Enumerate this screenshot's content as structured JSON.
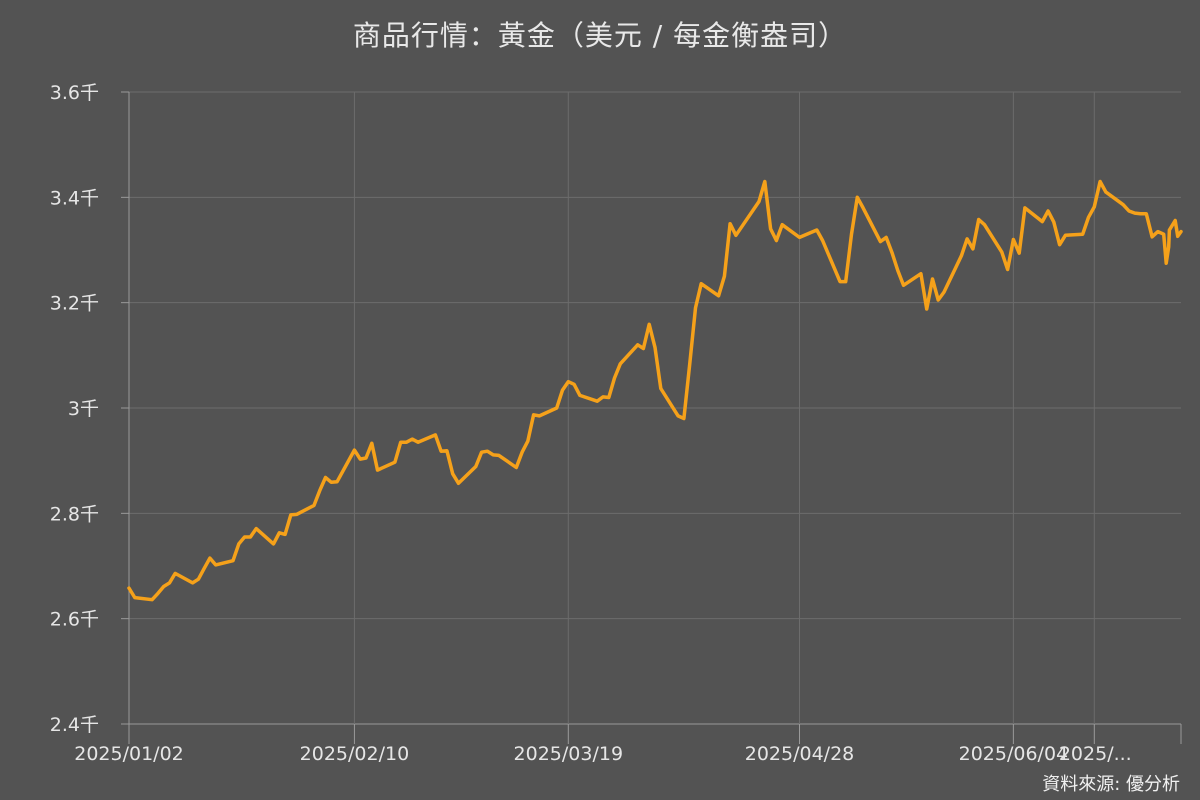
{
  "chart_data": {
    "type": "line",
    "title": "商品行情：黃金（美元 / 每金衡盎司）",
    "source": "資料來源: 優分析",
    "ylim": [
      2.4,
      3.6
    ],
    "yticks": [
      {
        "value": 2.4,
        "label": "2.4千"
      },
      {
        "value": 2.6,
        "label": "2.6千"
      },
      {
        "value": 2.8,
        "label": "2.8千"
      },
      {
        "value": 3.0,
        "label": "3千"
      },
      {
        "value": 3.2,
        "label": "3.2千"
      },
      {
        "value": 3.4,
        "label": "3.4千"
      },
      {
        "value": 3.6,
        "label": "3.6千"
      }
    ],
    "xlim": [
      "2025/01/02",
      "2025/07/03"
    ],
    "xticks": [
      {
        "value": "2025/01/02",
        "label": "2025/01/02"
      },
      {
        "value": "2025/02/10",
        "label": "2025/02/10"
      },
      {
        "value": "2025/03/19",
        "label": "2025/03/19"
      },
      {
        "value": "2025/04/28",
        "label": "2025/04/28"
      },
      {
        "value": "2025/06/04",
        "label": "2025/06/04"
      },
      {
        "value": "2025/06/18",
        "label": "2025/..."
      }
    ],
    "grid": true,
    "line_color": "#f5a11a",
    "series": [
      {
        "points": [
          [
            "2025/01/02",
            2.658
          ],
          [
            "2025/01/03",
            2.64
          ],
          [
            "2025/01/06",
            2.636
          ],
          [
            "2025/01/07",
            2.648
          ],
          [
            "2025/01/08",
            2.661
          ],
          [
            "2025/01/09",
            2.668
          ],
          [
            "2025/01/10",
            2.686
          ],
          [
            "2025/01/13",
            2.668
          ],
          [
            "2025/01/14",
            2.675
          ],
          [
            "2025/01/15",
            2.695
          ],
          [
            "2025/01/16",
            2.715
          ],
          [
            "2025/01/17",
            2.702
          ],
          [
            "2025/01/20",
            2.71
          ],
          [
            "2025/01/21",
            2.742
          ],
          [
            "2025/01/22",
            2.755
          ],
          [
            "2025/01/23",
            2.755
          ],
          [
            "2025/01/24",
            2.771
          ],
          [
            "2025/01/27",
            2.742
          ],
          [
            "2025/01/28",
            2.763
          ],
          [
            "2025/01/29",
            2.76
          ],
          [
            "2025/01/30",
            2.797
          ],
          [
            "2025/01/31",
            2.798
          ],
          [
            "2025/02/03",
            2.815
          ],
          [
            "2025/02/04",
            2.843
          ],
          [
            "2025/02/05",
            2.868
          ],
          [
            "2025/02/06",
            2.859
          ],
          [
            "2025/02/07",
            2.86
          ],
          [
            "2025/02/10",
            2.92
          ],
          [
            "2025/02/11",
            2.903
          ],
          [
            "2025/02/12",
            2.905
          ],
          [
            "2025/02/13",
            2.933
          ],
          [
            "2025/02/14",
            2.882
          ],
          [
            "2025/02/17",
            2.897
          ],
          [
            "2025/02/18",
            2.935
          ],
          [
            "2025/02/19",
            2.935
          ],
          [
            "2025/02/20",
            2.941
          ],
          [
            "2025/02/21",
            2.935
          ],
          [
            "2025/02/24",
            2.949
          ],
          [
            "2025/02/25",
            2.918
          ],
          [
            "2025/02/26",
            2.919
          ],
          [
            "2025/02/27",
            2.875
          ],
          [
            "2025/02/28",
            2.857
          ],
          [
            "2025/03/03",
            2.889
          ],
          [
            "2025/03/04",
            2.916
          ],
          [
            "2025/03/05",
            2.918
          ],
          [
            "2025/03/06",
            2.911
          ],
          [
            "2025/03/07",
            2.91
          ],
          [
            "2025/03/10",
            2.887
          ],
          [
            "2025/03/11",
            2.916
          ],
          [
            "2025/03/12",
            2.937
          ],
          [
            "2025/03/13",
            2.987
          ],
          [
            "2025/03/14",
            2.985
          ],
          [
            "2025/03/17",
            3.0
          ],
          [
            "2025/03/18",
            3.034
          ],
          [
            "2025/03/19",
            3.05
          ],
          [
            "2025/03/20",
            3.045
          ],
          [
            "2025/03/21",
            3.024
          ],
          [
            "2025/03/24",
            3.013
          ],
          [
            "2025/03/25",
            3.021
          ],
          [
            "2025/03/26",
            3.02
          ],
          [
            "2025/03/27",
            3.057
          ],
          [
            "2025/03/28",
            3.084
          ],
          [
            "2025/03/31",
            3.12
          ],
          [
            "2025/04/01",
            3.113
          ],
          [
            "2025/04/02",
            3.159
          ],
          [
            "2025/04/03",
            3.115
          ],
          [
            "2025/04/04",
            3.037
          ],
          [
            "2025/04/07",
            2.985
          ],
          [
            "2025/04/08",
            2.98
          ],
          [
            "2025/04/09",
            3.083
          ],
          [
            "2025/04/10",
            3.19
          ],
          [
            "2025/04/11",
            3.236
          ],
          [
            "2025/04/14",
            3.213
          ],
          [
            "2025/04/15",
            3.25
          ],
          [
            "2025/04/16",
            3.35
          ],
          [
            "2025/04/17",
            3.328
          ],
          [
            "2025/04/21",
            3.392
          ],
          [
            "2025/04/22",
            3.43
          ],
          [
            "2025/04/23",
            3.34
          ],
          [
            "2025/04/24",
            3.318
          ],
          [
            "2025/04/25",
            3.348
          ],
          [
            "2025/04/28",
            3.324
          ],
          [
            "2025/05/01",
            3.338
          ],
          [
            "2025/05/02",
            3.318
          ],
          [
            "2025/05/05",
            3.24
          ],
          [
            "2025/05/06",
            3.24
          ],
          [
            "2025/05/07",
            3.33
          ],
          [
            "2025/05/08",
            3.4
          ],
          [
            "2025/05/09",
            3.38
          ],
          [
            "2025/05/12",
            3.316
          ],
          [
            "2025/05/13",
            3.324
          ],
          [
            "2025/05/14",
            3.295
          ],
          [
            "2025/05/15",
            3.261
          ],
          [
            "2025/05/16",
            3.233
          ],
          [
            "2025/05/19",
            3.255
          ],
          [
            "2025/05/20",
            3.188
          ],
          [
            "2025/05/21",
            3.245
          ],
          [
            "2025/05/22",
            3.205
          ],
          [
            "2025/05/23",
            3.22
          ],
          [
            "2025/05/26",
            3.289
          ],
          [
            "2025/05/27",
            3.321
          ],
          [
            "2025/05/28",
            3.302
          ],
          [
            "2025/05/29",
            3.358
          ],
          [
            "2025/05/30",
            3.348
          ],
          [
            "2025/06/02",
            3.296
          ],
          [
            "2025/06/03",
            3.263
          ],
          [
            "2025/06/04",
            3.32
          ],
          [
            "2025/06/05",
            3.294
          ],
          [
            "2025/06/06",
            3.38
          ],
          [
            "2025/06/09",
            3.354
          ],
          [
            "2025/06/10",
            3.374
          ],
          [
            "2025/06/11",
            3.353
          ],
          [
            "2025/06/12",
            3.31
          ],
          [
            "2025/06/13",
            3.328
          ],
          [
            "2025/06/16",
            3.33
          ],
          [
            "2025/06/17",
            3.362
          ],
          [
            "2025/06/18",
            3.382
          ],
          [
            "2025/06/19",
            3.43
          ],
          [
            "2025/06/20",
            3.41
          ],
          [
            "2025/06/23",
            3.386
          ],
          [
            "2025/06/24",
            3.374
          ],
          [
            "2025/06/25",
            3.37
          ],
          [
            "2025/06/26",
            3.369
          ],
          [
            "2025/06/27",
            3.369
          ],
          [
            "2025/06/28",
            3.325
          ],
          [
            "2025/06/29",
            3.335
          ],
          [
            "2025/06/30",
            3.33
          ],
          [
            "2025/06/30",
            3.275
          ],
          [
            "2025/06/30",
            3.306
          ],
          [
            "2025/07/01",
            3.338
          ],
          [
            "2025/07/02",
            3.356
          ],
          [
            "2025/07/02",
            3.326
          ],
          [
            "2025/07/03",
            3.335
          ]
        ]
      }
    ]
  }
}
